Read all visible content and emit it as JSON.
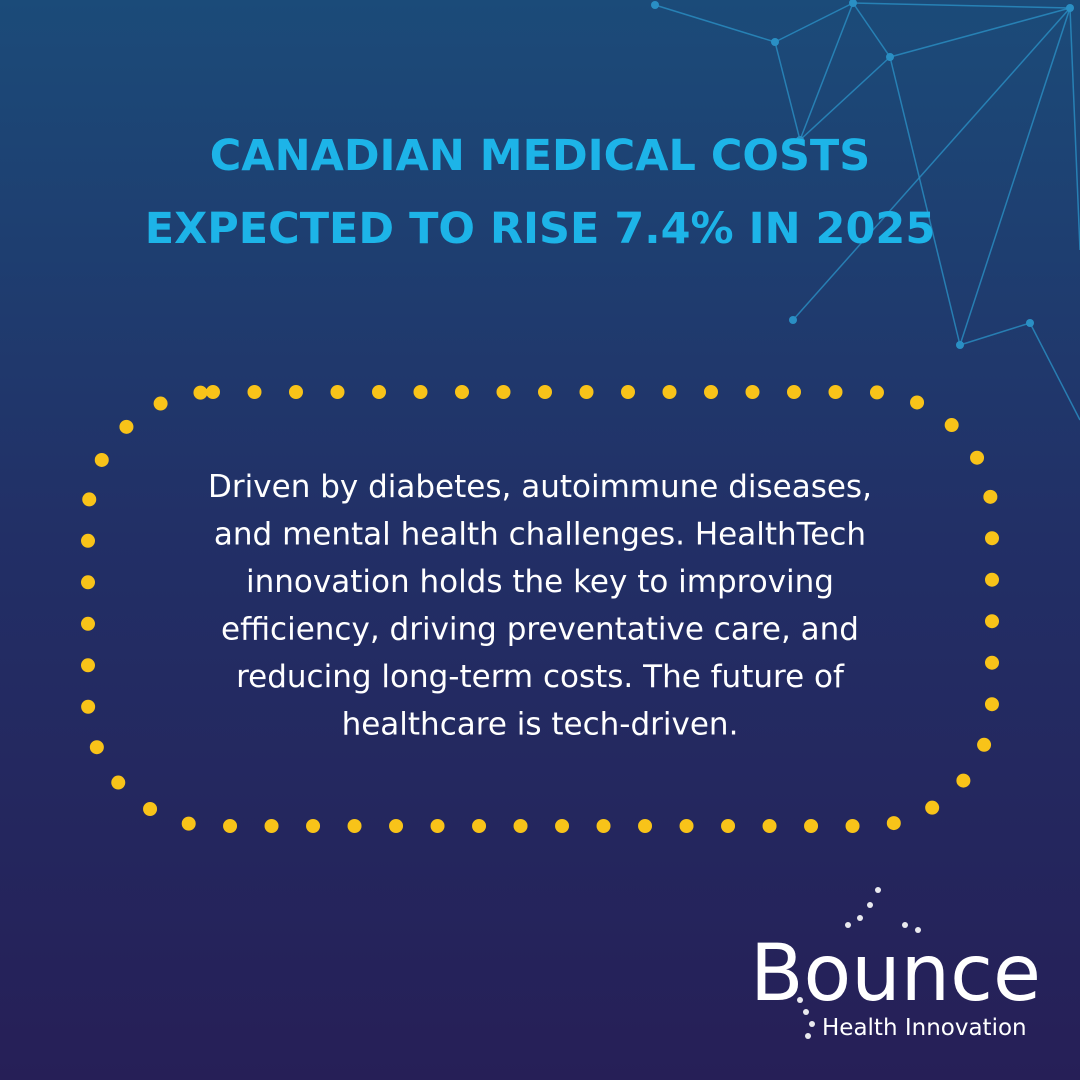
{
  "header": {
    "title_lines": [
      "CANADIAN MEDICAL COSTS",
      "EXPECTED TO RISE 7.4% IN 2025"
    ]
  },
  "body": {
    "lines": [
      "Driven by diabetes, autoimmune diseases,",
      "and mental health challenges. HealthTech",
      "innovation holds the key to improving",
      "efficiency, driving preventative care, and",
      "reducing long-term costs. The future of",
      "healthcare is tech-driven."
    ]
  },
  "logo": {
    "name": "Bounce",
    "tagline": "Health Innovation"
  }
}
